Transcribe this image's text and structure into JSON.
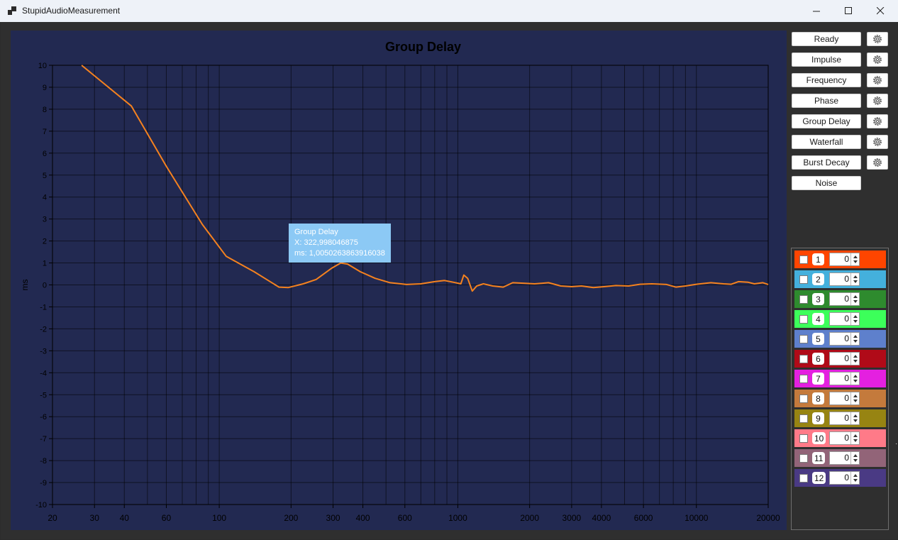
{
  "window": {
    "title": "StupidAudioMeasurement"
  },
  "tooltip": {
    "series": "Group Delay",
    "x_line": "X: 322,998046875",
    "y_line": "ms: 1,0050263863916038"
  },
  "buttons": [
    {
      "label": "Ready",
      "has_settings": true
    },
    {
      "label": "Impulse",
      "has_settings": true
    },
    {
      "label": "Frequency",
      "has_settings": true
    },
    {
      "label": "Phase",
      "has_settings": true
    },
    {
      "label": "Group Delay",
      "has_settings": true
    },
    {
      "label": "Waterfall",
      "has_settings": true
    },
    {
      "label": "Burst Decay",
      "has_settings": true
    },
    {
      "label": "Noise",
      "has_settings": false
    }
  ],
  "channels": [
    {
      "number": "1",
      "value": "0",
      "color": "#ff4500",
      "checked": false
    },
    {
      "number": "2",
      "value": "0",
      "color": "#44b0dc",
      "checked": false
    },
    {
      "number": "3",
      "value": "0",
      "color": "#2e8b2e",
      "checked": false
    },
    {
      "number": "4",
      "value": "0",
      "color": "#3cff5a",
      "checked": false
    },
    {
      "number": "5",
      "value": "0",
      "color": "#5e80cc",
      "checked": false
    },
    {
      "number": "6",
      "value": "0",
      "color": "#b00a18",
      "checked": false
    },
    {
      "number": "7",
      "value": "0",
      "color": "#e420e0",
      "checked": false
    },
    {
      "number": "8",
      "value": "0",
      "color": "#c47a3c",
      "checked": false
    },
    {
      "number": "9",
      "value": "0",
      "color": "#978412",
      "checked": false
    },
    {
      "number": "10",
      "value": "0",
      "color": "#ff7a88",
      "checked": false
    },
    {
      "number": "11",
      "value": "0",
      "color": "#926478",
      "checked": false
    },
    {
      "number": "12",
      "value": "0",
      "color": "#4a3a84",
      "checked": false
    }
  ],
  "chart_data": {
    "type": "line",
    "title": "Group Delay",
    "xlabel": "",
    "ylabel": "ms",
    "x_scale": "log",
    "xlim": [
      20,
      20000
    ],
    "ylim": [
      -10,
      10
    ],
    "x_ticks": [
      "20",
      "30",
      "40",
      "60",
      "100",
      "200",
      "300",
      "400",
      "600",
      "1000",
      "2000",
      "3000",
      "4000",
      "6000",
      "10000",
      "20000"
    ],
    "y_ticks": [
      "10",
      "9",
      "8",
      "7",
      "6",
      "5",
      "4",
      "3",
      "2",
      "1",
      "0",
      "-1",
      "-2",
      "-3",
      "-4",
      "-5",
      "-6",
      "-7",
      "-8",
      "-9",
      "-10"
    ],
    "grid": true,
    "line_color": "#f5821f",
    "background": "#222951",
    "series": [
      {
        "x": [
          26.5,
          42.8,
          60,
          85,
          107,
          140,
          178,
          195,
          225,
          255,
          295,
          323,
          345,
          390,
          450,
          520,
          610,
          700,
          800,
          880,
          960,
          1030,
          1060,
          1100,
          1150,
          1200,
          1280,
          1400,
          1550,
          1700,
          1850,
          2100,
          2400,
          2700,
          3000,
          3300,
          3700,
          4100,
          4600,
          5200,
          5800,
          6500,
          7500,
          8200,
          9000,
          10000,
          11500,
          13000,
          14000,
          15000,
          16500,
          17500,
          19000,
          20000
        ],
        "values": [
          10,
          8.15,
          5.4,
          2.75,
          1.3,
          0.6,
          -0.1,
          -0.12,
          0.05,
          0.25,
          0.75,
          1.0,
          0.95,
          0.6,
          0.3,
          0.1,
          0.02,
          0.05,
          0.15,
          0.2,
          0.12,
          0.05,
          0.45,
          0.3,
          -0.28,
          -0.05,
          0.05,
          -0.05,
          -0.1,
          0.1,
          0.08,
          0.05,
          0.1,
          -0.05,
          -0.08,
          -0.05,
          -0.12,
          -0.08,
          -0.03,
          -0.05,
          0.03,
          0.05,
          0.02,
          -0.1,
          -0.05,
          0.03,
          0.1,
          0.05,
          0.03,
          0.15,
          0.12,
          0.05,
          0.1,
          0.02
        ]
      }
    ]
  }
}
